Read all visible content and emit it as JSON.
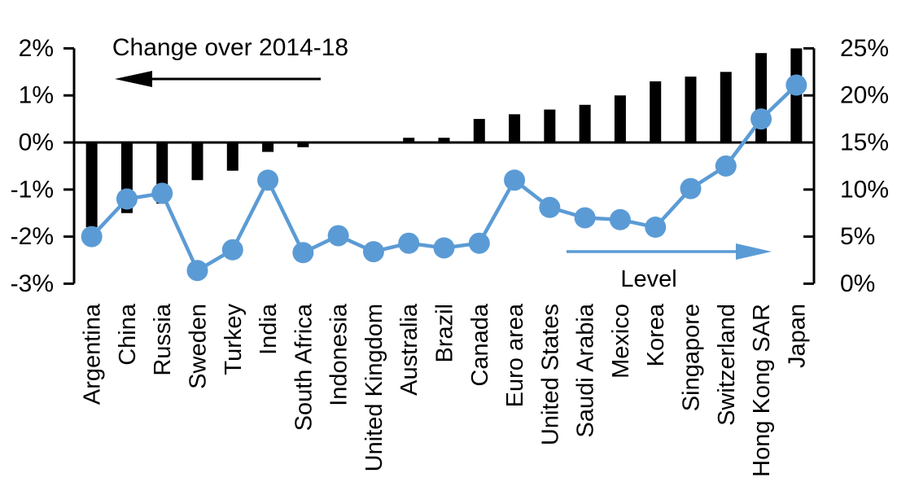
{
  "chart_data": {
    "type": "combo_bar_line",
    "title": "",
    "categories": [
      "Argentina",
      "China",
      "Russia",
      "Sweden",
      "Turkey",
      "India",
      "South Africa",
      "Indonesia",
      "United Kingdom",
      "Australia",
      "Brazil",
      "Canada",
      "Euro area",
      "United States",
      "Saudi Arabia",
      "Mexico",
      "Korea",
      "Singapore",
      "Switzerland",
      "Hong Kong SAR",
      "Japan"
    ],
    "series": [
      {
        "name": "Change over 2014-18",
        "type": "bar",
        "axis": "left",
        "color": "#000000",
        "values": [
          -1.8,
          -1.5,
          -1.3,
          -0.8,
          -0.6,
          -0.2,
          -0.1,
          0,
          0,
          0.1,
          0.1,
          0.5,
          0.6,
          0.7,
          0.8,
          1.0,
          1.3,
          1.4,
          1.5,
          1.9,
          2.0
        ]
      },
      {
        "name": "Level",
        "type": "line",
        "axis": "right",
        "color": "#5B9BD5",
        "values": [
          5.0,
          9.0,
          9.6,
          1.4,
          3.6,
          11.0,
          3.3,
          5.1,
          3.4,
          4.3,
          3.8,
          4.3,
          11.0,
          8.1,
          7.0,
          6.8,
          6.0,
          10.1,
          12.5,
          17.5,
          21.1
        ]
      }
    ],
    "left_axis": {
      "unit": "%",
      "min": -3,
      "max": 2,
      "tick_values": [
        2,
        1,
        0,
        -1,
        -2,
        -3
      ],
      "tick_labels": [
        "2%",
        "1%",
        "0%",
        "-1%",
        "-2%",
        "-3%"
      ]
    },
    "right_axis": {
      "unit": "%",
      "min": 0,
      "max": 25,
      "tick_values": [
        25,
        20,
        15,
        10,
        5,
        0
      ],
      "tick_labels": [
        "25%",
        "20%",
        "15%",
        "10%",
        "5%",
        "0%"
      ]
    },
    "annotations": {
      "bar": {
        "text": "Change over 2014-18",
        "arrow_direction": "left",
        "arrow_color": "#000000"
      },
      "line": {
        "text": "Level",
        "arrow_direction": "right",
        "arrow_color": "#5B9BD5"
      }
    },
    "grid": false,
    "legend_position": "none (in-plot annotations with arrows)",
    "background_color": "#ffffff"
  }
}
